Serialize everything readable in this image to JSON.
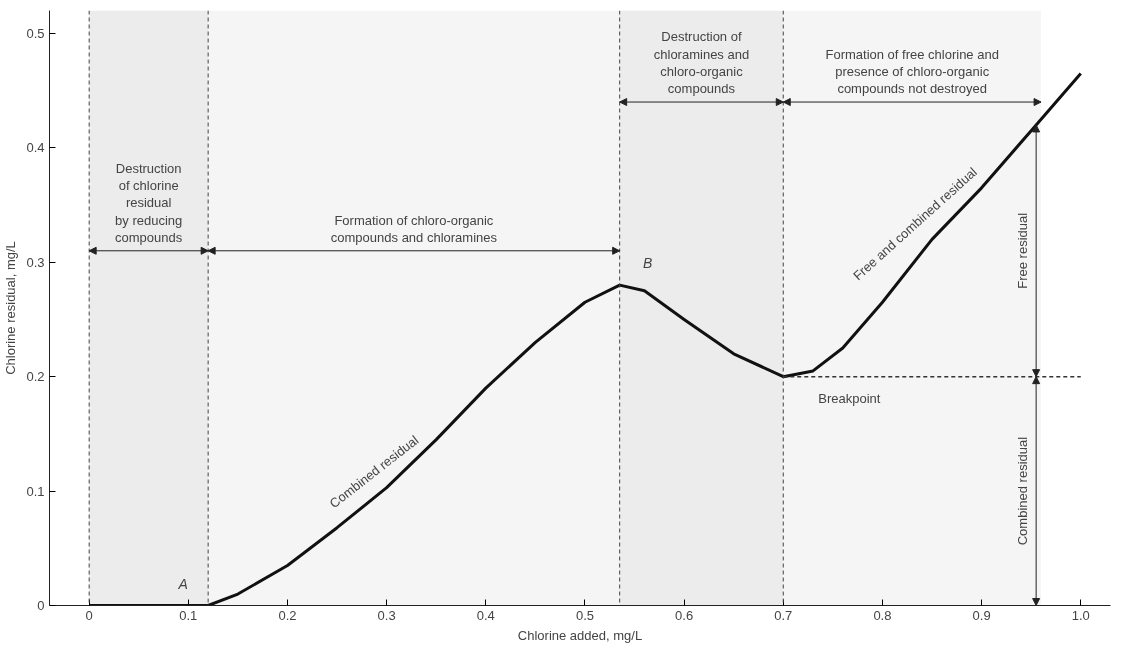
{
  "chart_data": {
    "type": "line",
    "xlabel": "Chlorine added, mg/L",
    "ylabel": "Chlorine residual, mg/L",
    "xlim": [
      -0.04,
      1.03
    ],
    "ylim": [
      0,
      0.52
    ],
    "xticks": [
      0,
      0.1,
      0.2,
      0.3,
      0.4,
      0.5,
      0.6,
      0.7,
      0.8,
      0.9,
      {
        "value": 1,
        "label": "1.0"
      }
    ],
    "yticks": [
      0,
      0.1,
      0.2,
      0.3,
      0.4,
      0.5
    ],
    "grid": false,
    "marker": "none",
    "line_style": "solid",
    "series": [
      {
        "color": "#111111",
        "x": [
          0,
          0.05,
          0.1,
          0.12,
          0.15,
          0.2,
          0.25,
          0.3,
          0.35,
          0.4,
          0.45,
          0.5,
          0.535,
          0.56,
          0.6,
          0.65,
          0.7,
          0.73,
          0.76,
          0.8,
          0.85,
          0.9,
          0.95,
          1.0
        ],
        "values": [
          0,
          0,
          0,
          0,
          0.01,
          0.035,
          0.068,
          0.103,
          0.145,
          0.19,
          0.23,
          0.265,
          0.28,
          0.275,
          0.25,
          0.22,
          0.2,
          0.205,
          0.225,
          0.265,
          0.32,
          0.365,
          0.415,
          0.465
        ]
      },
      {
        "color": "#333333",
        "line_style": "dashed",
        "x": [
          0.7,
          1.0
        ],
        "values": [
          0.2,
          0.2
        ]
      }
    ],
    "ref_lines": [
      {
        "axis": "x",
        "value": 0,
        "line_style": "dashed"
      },
      {
        "axis": "x",
        "value": 0.12,
        "line_style": "dashed"
      },
      {
        "axis": "x",
        "value": 0.535,
        "line_style": "dashed"
      },
      {
        "axis": "x",
        "value": 0.7,
        "line_style": "dashed"
      }
    ],
    "bands": [
      {
        "axis": "x",
        "from": 0,
        "to": 0.12,
        "color": "#ececec",
        "label": "Destruction\nof chlorine\nresidual\nby reducing\ncompounds"
      },
      {
        "axis": "x",
        "from": 0.12,
        "to": 0.535,
        "color": "#f5f5f5",
        "label": "Formation of chloro-organic\ncompounds and chloramines"
      },
      {
        "axis": "x",
        "from": 0.535,
        "to": 0.7,
        "color": "#ececec",
        "label": "Destruction of\nchloramines and\nchloro-organic\ncompounds"
      },
      {
        "axis": "x",
        "from": 0.7,
        "to": 0.96,
        "color": "#f5f5f5",
        "label": "Formation of free chlorine and\npresence of chloro-organic\ncompounds not destroyed"
      }
    ],
    "annotations": [
      {
        "text": "A",
        "x": 0.12,
        "y": 0
      },
      {
        "text": "B",
        "x": 0.535,
        "y": 0.28
      },
      {
        "text": "Breakpoint",
        "x": 0.7,
        "y": 0.2
      },
      {
        "text": "Combined residual",
        "x": 0.3,
        "y": 0.103
      },
      {
        "text": "Free and combined residual",
        "x": 0.85,
        "y": 0.32
      },
      "Free residual",
      "Combined residual"
    ]
  }
}
